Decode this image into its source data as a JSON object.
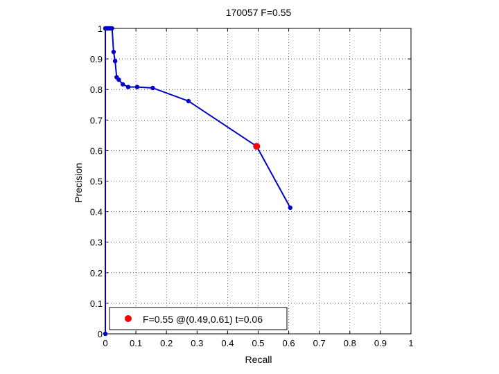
{
  "chart_data": {
    "type": "line",
    "title": "170057 F=0.55",
    "xlabel": "Recall",
    "ylabel": "Precision",
    "xlim": [
      0,
      1
    ],
    "ylim": [
      0,
      1
    ],
    "xticks": [
      "0",
      "0.1",
      "0.2",
      "0.3",
      "0.4",
      "0.5",
      "0.6",
      "0.7",
      "0.8",
      "0.9",
      "1"
    ],
    "yticks": [
      "0",
      "0.1",
      "0.2",
      "0.3",
      "0.4",
      "0.5",
      "0.6",
      "0.7",
      "0.8",
      "0.9",
      "1"
    ],
    "grid": true,
    "series": [
      {
        "color": "#0000cc",
        "x": [
          0.0,
          0.0,
          0.003,
          0.006,
          0.009,
          0.012,
          0.016,
          0.022,
          0.027,
          0.032,
          0.037,
          0.044,
          0.057,
          0.075,
          0.104,
          0.155,
          0.272,
          0.495,
          0.605
        ],
        "y": [
          0.0,
          1.0,
          1.0,
          1.0,
          1.0,
          1.0,
          1.0,
          1.0,
          0.923,
          0.893,
          0.84,
          0.832,
          0.817,
          0.808,
          0.808,
          0.805,
          0.762,
          0.614,
          0.413
        ]
      }
    ],
    "highlight_point": {
      "x": 0.495,
      "y": 0.614,
      "color": "#ff0000"
    },
    "legend": {
      "position": "bottom-left",
      "entries": [
        "F=0.55 @(0.49,0.61) t=0.06"
      ]
    }
  }
}
